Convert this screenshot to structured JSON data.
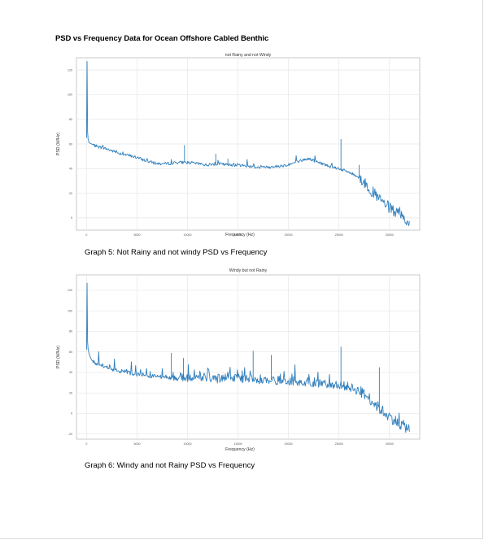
{
  "document": {
    "title": "PSD vs Frequency Data for Ocean Offshore Cabled Benthic",
    "captions": [
      "Graph 5: Not Rainy and not windy PSD vs Frequency",
      "Graph 6: Windy and not Rainy PSD vs Frequency"
    ]
  },
  "colors": {
    "line": "#2f7ebc",
    "grid": "#e6e6e6",
    "frame": "#bdbdbd",
    "text": "#555555"
  },
  "chart_data": [
    {
      "type": "line",
      "title": "not Rainy and not Windy",
      "xlabel": "Frequency (Hz)",
      "ylabel": "PSD (W/Hz)",
      "xlim": [
        -1000,
        33000
      ],
      "ylim": [
        -10,
        130
      ],
      "xticks": [
        0,
        5000,
        10000,
        15000,
        20000,
        25000,
        30000
      ],
      "yticks": [
        0,
        20,
        40,
        60,
        80,
        100,
        120
      ],
      "grid": true,
      "series": [
        {
          "name": "PSD",
          "x": [
            0,
            50,
            100,
            150,
            250,
            500,
            1000,
            2000,
            3000,
            4000,
            5000,
            6000,
            7000,
            8000,
            9000,
            10000,
            11000,
            12000,
            13000,
            14000,
            15000,
            16000,
            17000,
            18000,
            19000,
            20000,
            21000,
            22000,
            23000,
            24000,
            25000,
            26000,
            27000,
            28000,
            29000,
            30000,
            31000,
            32000
          ],
          "y": [
            65,
            127,
            70,
            64,
            61,
            60,
            58,
            56,
            53,
            51,
            49,
            46,
            44,
            44,
            45,
            45,
            44,
            43,
            44,
            43,
            43,
            42,
            41,
            41,
            42,
            43,
            46,
            48,
            45,
            42,
            40,
            37,
            33,
            24,
            15,
            8,
            2,
            -4
          ]
        }
      ],
      "spikes": [
        {
          "x": 9700,
          "y": 59
        },
        {
          "x": 12800,
          "y": 52
        },
        {
          "x": 14000,
          "y": 48
        },
        {
          "x": 25200,
          "y": 64
        },
        {
          "x": 27000,
          "y": 43
        }
      ]
    },
    {
      "type": "line",
      "title": "Windy but not Rainy",
      "xlabel": "Frequency (Hz)",
      "ylabel": "PSD (W/Hz)",
      "xlim": [
        -1000,
        33000
      ],
      "ylim": [
        -25,
        135
      ],
      "xticks": [
        0,
        5000,
        10000,
        15000,
        20000,
        25000,
        30000
      ],
      "yticks": [
        -20,
        0,
        20,
        40,
        60,
        80,
        100,
        120
      ],
      "grid": true,
      "series": [
        {
          "name": "PSD",
          "x": [
            0,
            50,
            100,
            150,
            250,
            500,
            1000,
            2000,
            3000,
            4000,
            5000,
            6000,
            7000,
            8000,
            9000,
            10000,
            11000,
            12000,
            13000,
            14000,
            15000,
            16000,
            17000,
            18000,
            19000,
            20000,
            21000,
            22000,
            23000,
            24000,
            25000,
            26000,
            27000,
            28000,
            29000,
            30000,
            31000,
            32000
          ],
          "y": [
            62,
            127,
            70,
            63,
            58,
            52,
            48,
            45,
            42,
            40,
            38,
            37,
            36,
            36,
            36,
            35,
            35,
            35,
            34,
            34,
            34,
            34,
            33,
            33,
            32,
            32,
            31,
            31,
            30,
            29,
            28,
            26,
            22,
            15,
            5,
            -3,
            -10,
            -15
          ]
        }
      ],
      "spikes": [
        {
          "x": 8400,
          "y": 59
        },
        {
          "x": 9600,
          "y": 54
        },
        {
          "x": 16500,
          "y": 61
        },
        {
          "x": 18300,
          "y": 57
        },
        {
          "x": 25200,
          "y": 65
        },
        {
          "x": 29000,
          "y": 45
        }
      ]
    }
  ]
}
